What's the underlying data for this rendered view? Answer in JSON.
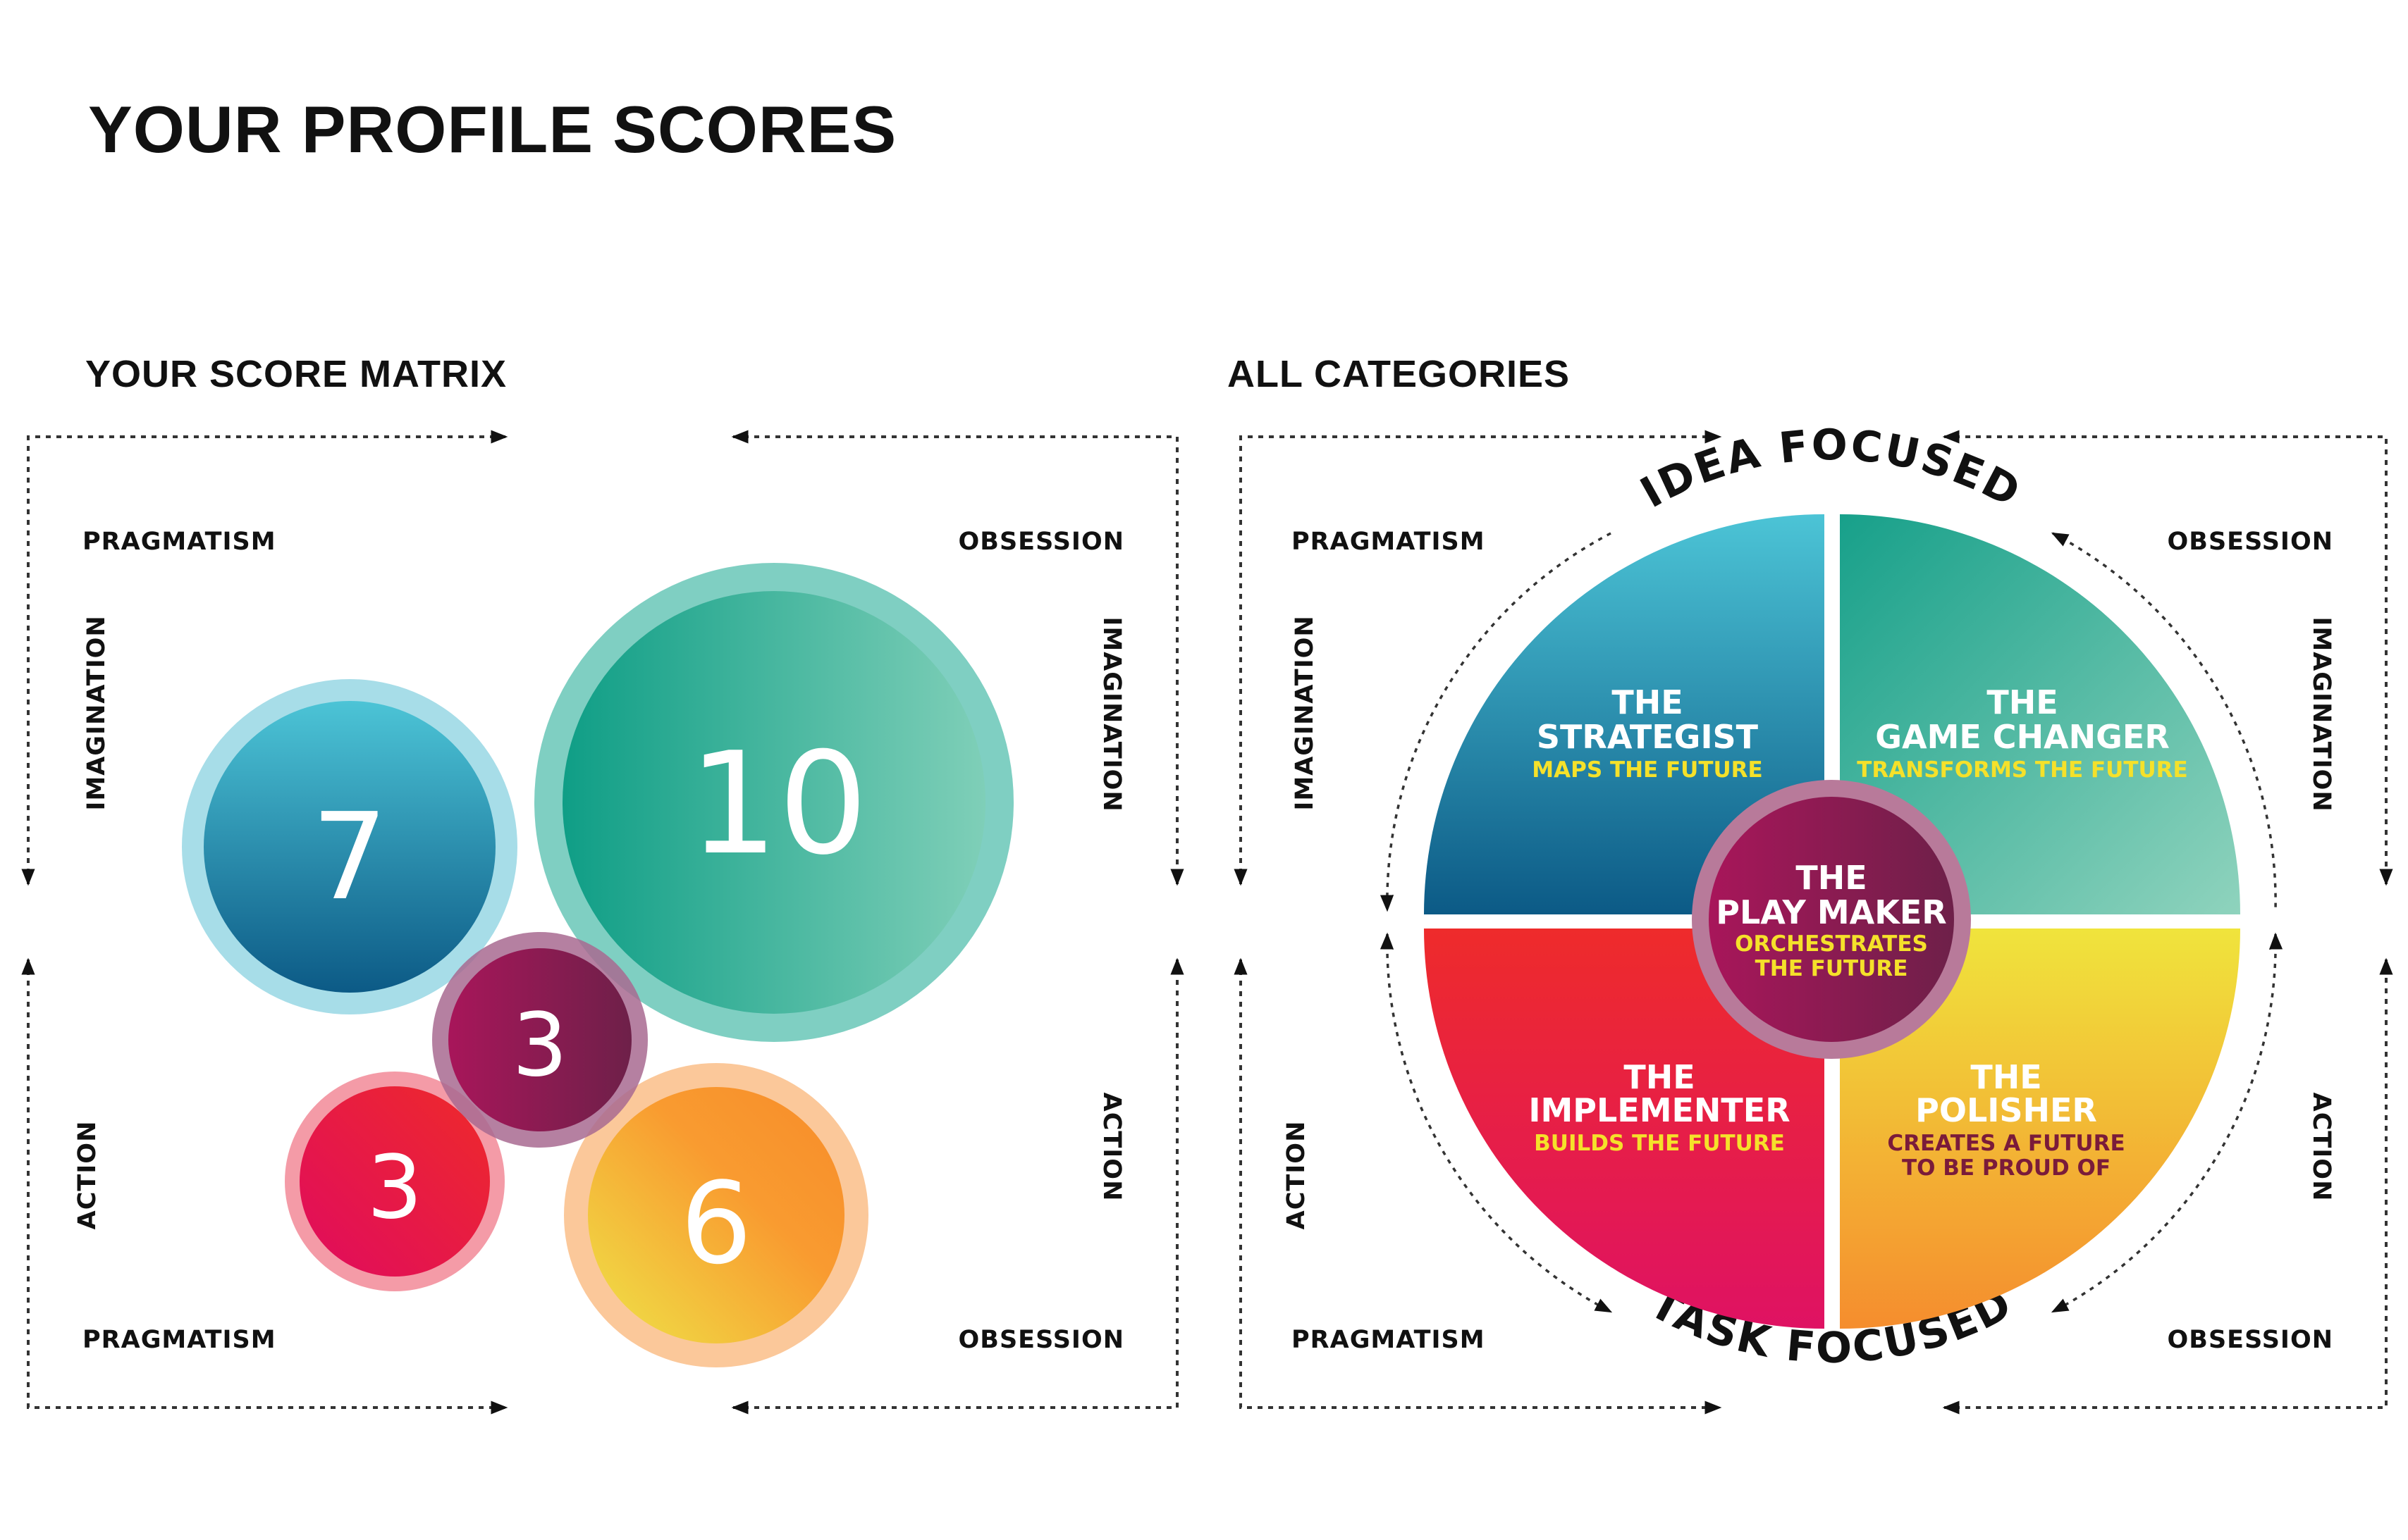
{
  "title": "YOUR PROFILE SCORES",
  "score_matrix": {
    "title": "YOUR SCORE MATRIX",
    "labels": {
      "top_left": "PRAGMATISM",
      "top_right": "OBSESSION",
      "bottom_left": "PRAGMATISM",
      "bottom_right": "OBSESSION",
      "left_upper": "IMAGINATION",
      "left_lower": "ACTION",
      "right_upper": "IMAGINATION",
      "right_lower": "ACTION"
    },
    "scores": [
      {
        "category": "The Strategist",
        "value": "7",
        "color": "#2a92b8"
      },
      {
        "category": "The Game Changer",
        "value": "10",
        "color": "#13a58e"
      },
      {
        "category": "The Play Maker",
        "value": "3",
        "color": "#8c1c55"
      },
      {
        "category": "The Implementer",
        "value": "3",
        "color": "#e3184f"
      },
      {
        "category": "The Polisher",
        "value": "6",
        "color": "#f5a328"
      }
    ]
  },
  "all_categories": {
    "title": "ALL CATEGORIES",
    "top_arc_label": "IDEA FOCUSED",
    "bottom_arc_label": "TASK FOCUSED",
    "labels": {
      "top_left": "PRAGMATISM",
      "top_right": "OBSESSION",
      "bottom_left": "PRAGMATISM",
      "bottom_right": "OBSESSION",
      "left_upper": "IMAGINATION",
      "left_lower": "ACTION",
      "right_upper": "IMAGINATION",
      "right_lower": "ACTION"
    },
    "quadrants": [
      {
        "name_line1": "THE",
        "name_line2": "STRATEGIST",
        "tagline_line1": "MAPS THE FUTURE",
        "tagline_line2": ""
      },
      {
        "name_line1": "THE",
        "name_line2": "GAME CHANGER",
        "tagline_line1": "TRANSFORMS THE FUTURE",
        "tagline_line2": ""
      },
      {
        "name_line1": "THE",
        "name_line2": "IMPLEMENTER",
        "tagline_line1": "BUILDS THE FUTURE",
        "tagline_line2": ""
      },
      {
        "name_line1": "THE",
        "name_line2": "POLISHER",
        "tagline_line1": "CREATES A FUTURE",
        "tagline_line2": "TO BE PROUD OF"
      }
    ],
    "center": {
      "name_line1": "THE",
      "name_line2": "PLAY MAKER",
      "tagline_line1": "ORCHESTRATES",
      "tagline_line2": "THE FUTURE"
    }
  },
  "colors": {
    "strategist": "#2a92b8",
    "game_changer": "#13a58e",
    "play_maker": "#8c1c55",
    "implementer": "#e3184f",
    "polisher": "#f5a328",
    "tagline_yellow": "#f5e12a",
    "tagline_dark": "#7a1b3a"
  }
}
